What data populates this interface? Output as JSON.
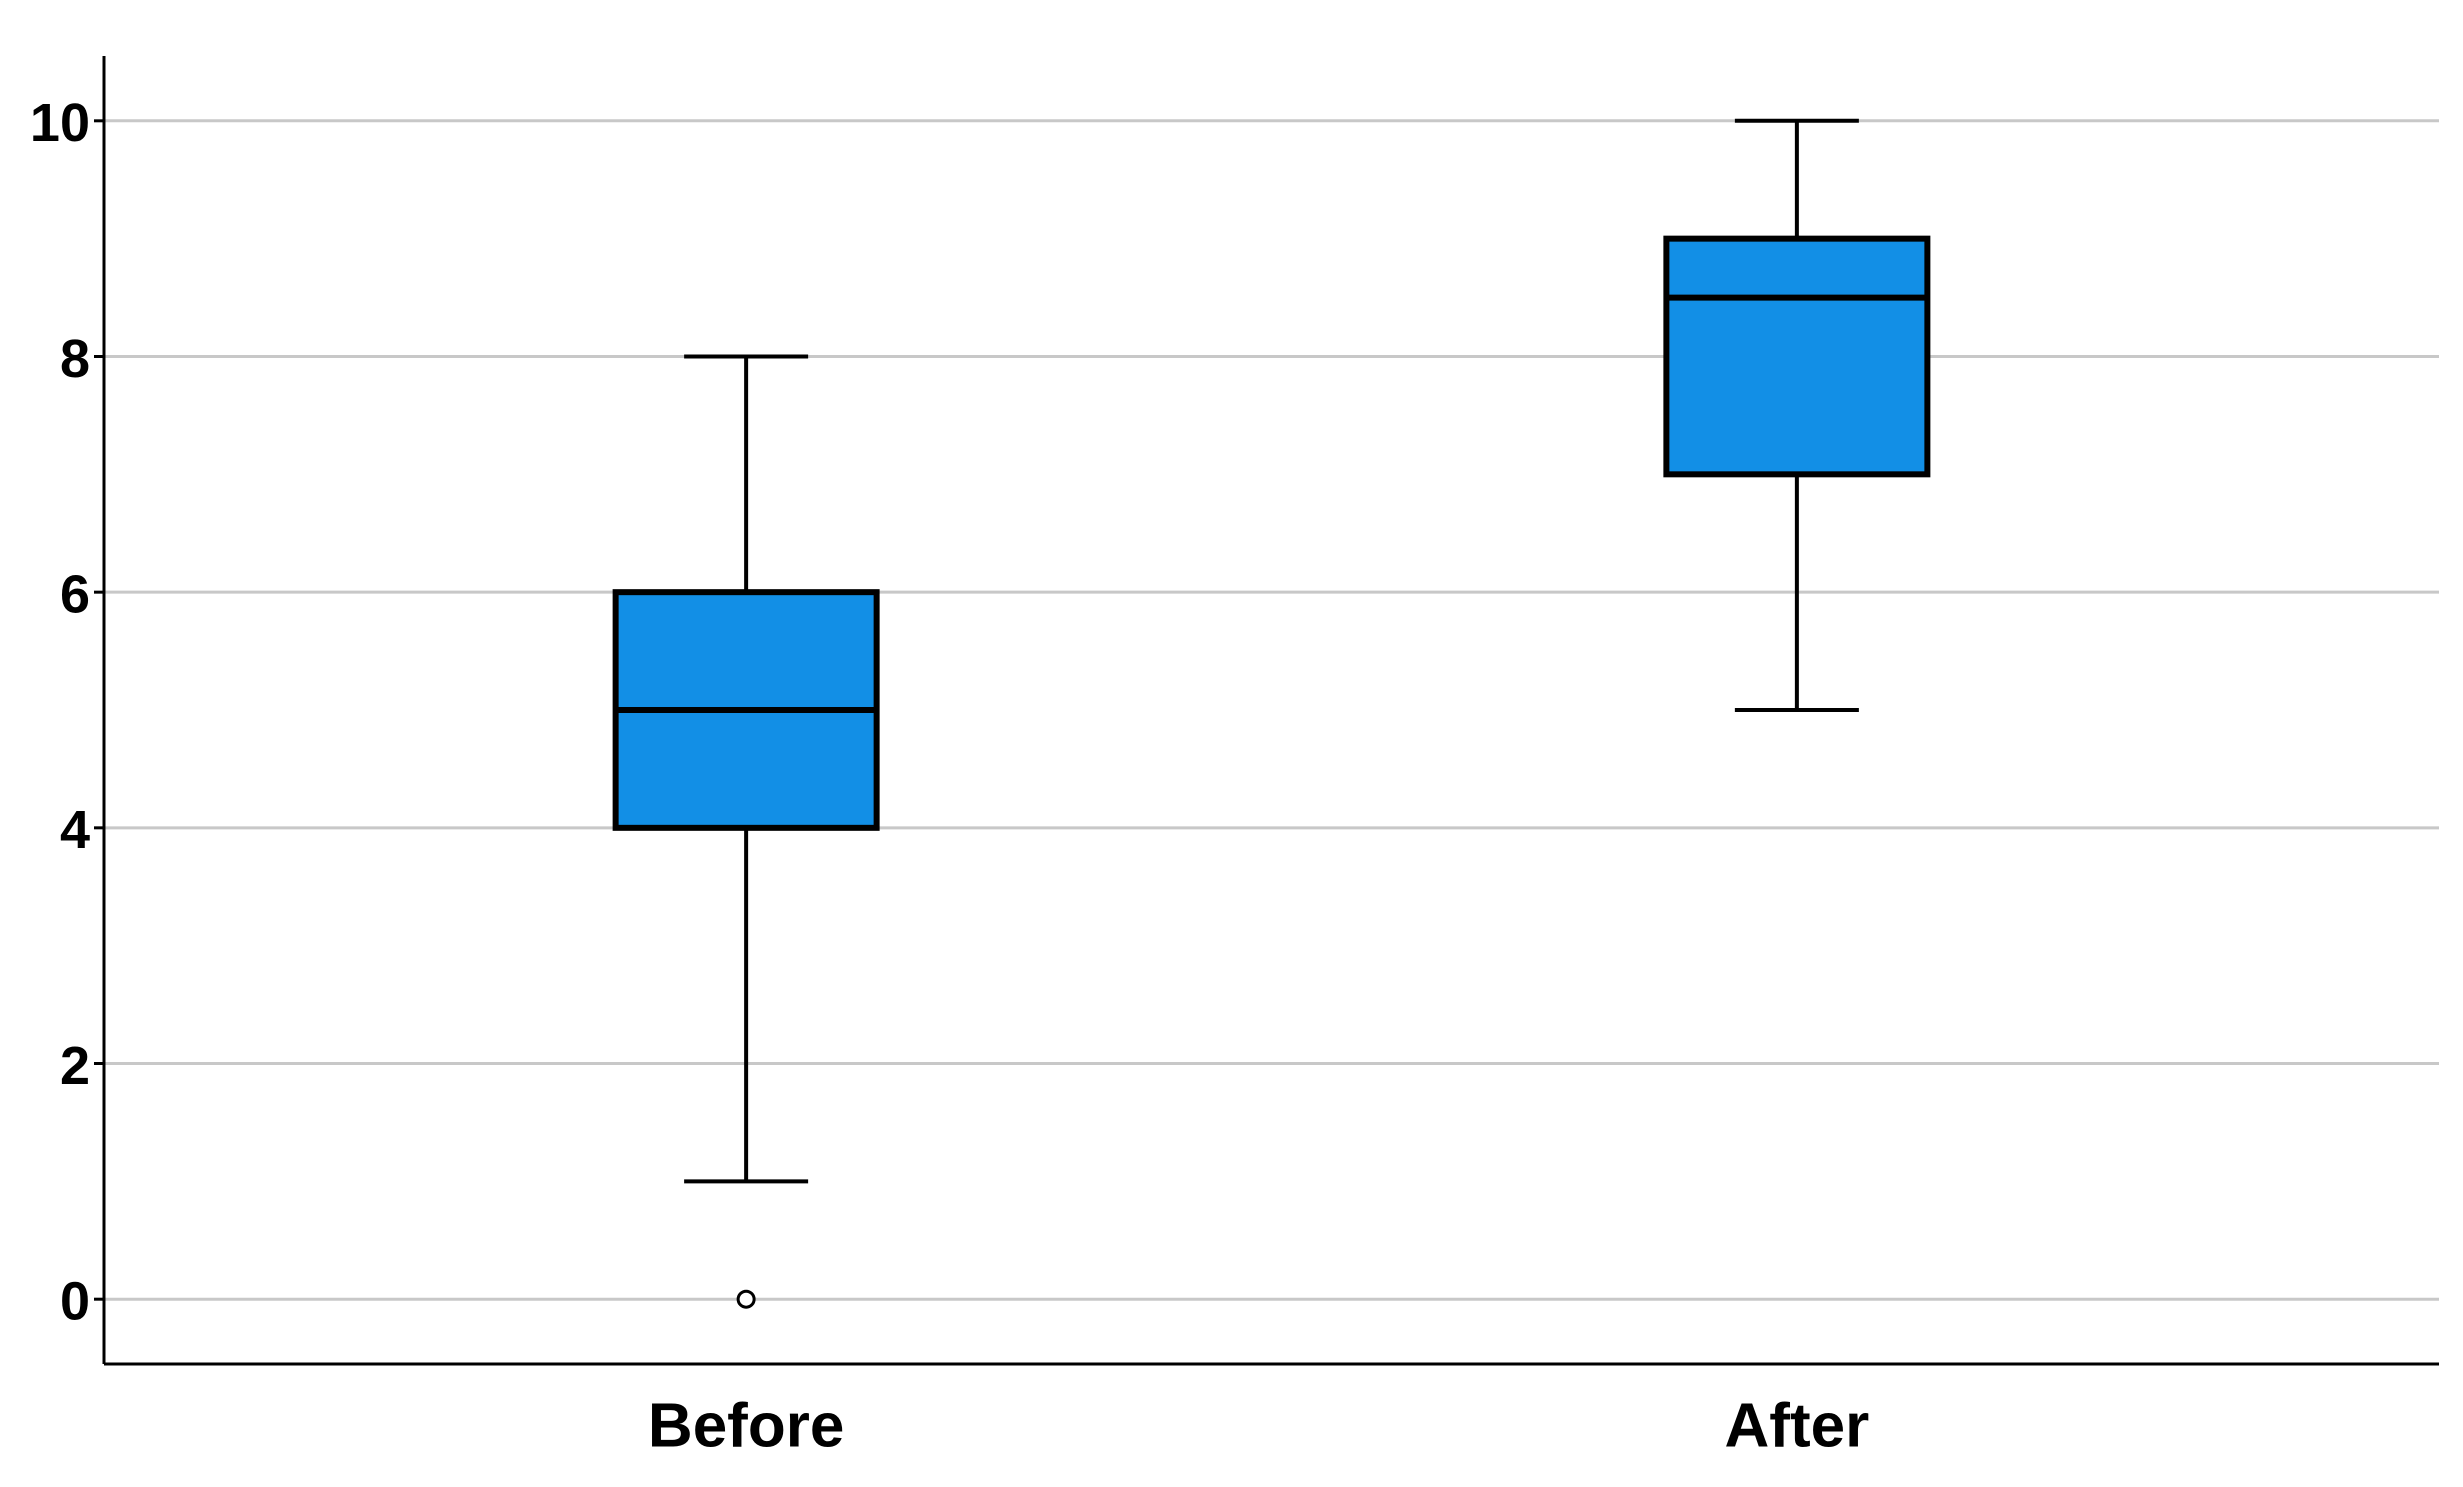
{
  "chart_data": {
    "type": "box",
    "categories": [
      "Before",
      "After"
    ],
    "min": [
      1,
      5
    ],
    "q1": [
      4,
      7
    ],
    "median": [
      5,
      8.5
    ],
    "q3": [
      6,
      9
    ],
    "max": [
      8,
      10
    ],
    "outliers": [
      [
        0
      ],
      []
    ],
    "color": "#128fe6",
    "ylim": [
      -0.55,
      10.55
    ],
    "yticks": [
      0,
      2,
      4,
      6,
      8,
      10
    ],
    "grid": true
  }
}
